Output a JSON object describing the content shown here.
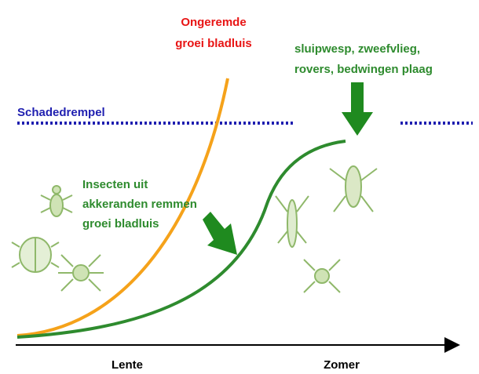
{
  "labels": {
    "unchecked": [
      "Ongeremde",
      "groei bladluis"
    ],
    "predators": [
      "sluipwesp, zweefvlieg,",
      "rovers, bedwingen plaag"
    ],
    "threshold": "Schadedrempel",
    "field_edges": [
      "Insecten uit",
      "akkeranden remmen",
      "groei bladluis"
    ],
    "spring": "Lente",
    "summer": "Zomer"
  }
}
